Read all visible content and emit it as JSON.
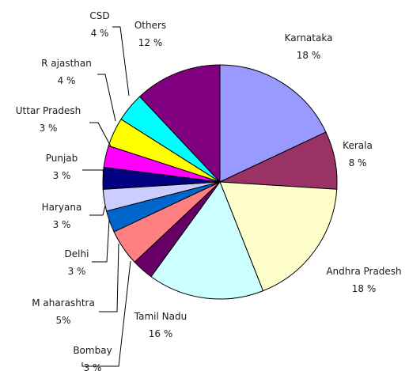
{
  "chart_data": {
    "type": "pie",
    "title": "",
    "slices": [
      {
        "label": "Karnataka",
        "pct_label": "18 %",
        "value": 18,
        "color": "#9999ff"
      },
      {
        "label": "Kerala",
        "pct_label": "8 %",
        "value": 8,
        "color": "#993366"
      },
      {
        "label": "Andhra Pradesh",
        "pct_label": "18 %",
        "value": 18,
        "color": "#ffffcc"
      },
      {
        "label": "Tamil Nadu",
        "pct_label": "16 %",
        "value": 16,
        "color": "#ccffff"
      },
      {
        "label": "Bombay",
        "pct_label": "3 %",
        "value": 3,
        "color": "#660066"
      },
      {
        "label": "M aharashtra",
        "pct_label": "5%",
        "value": 5,
        "color": "#ff8080"
      },
      {
        "label": "Delhi",
        "pct_label": "3 %",
        "value": 3,
        "color": "#0066cc"
      },
      {
        "label": "Haryana",
        "pct_label": "3 %",
        "value": 3,
        "color": "#ccccff"
      },
      {
        "label": "Punjab",
        "pct_label": "3 %",
        "value": 3,
        "color": "#000080"
      },
      {
        "label": "Uttar Pradesh",
        "pct_label": "3 %",
        "value": 3,
        "color": "#ff00ff"
      },
      {
        "label": "R ajasthan",
        "pct_label": "4 %",
        "value": 4,
        "color": "#ffff00"
      },
      {
        "label": "CSD",
        "pct_label": "4 %",
        "value": 4,
        "color": "#00ffff"
      },
      {
        "label": "Others",
        "pct_label": "12 %",
        "value": 12,
        "color": "#800080"
      }
    ]
  }
}
